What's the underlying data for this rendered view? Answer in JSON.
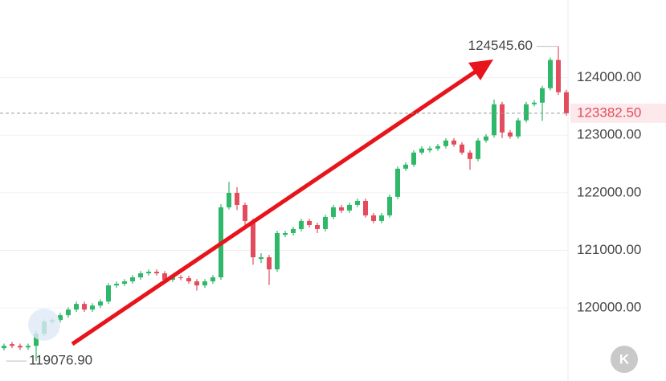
{
  "chart_data": {
    "type": "candlestick",
    "open": [
      119300,
      119371,
      119341,
      119313,
      119341,
      119551,
      119761,
      119789,
      119873,
      119971,
      120069,
      119971,
      120041,
      120111,
      120391,
      120419,
      120461,
      120531,
      120601,
      120629,
      120601,
      120489,
      120531,
      120517,
      120461,
      120391,
      120461,
      120531,
      121748,
      121999,
      121789,
      121510,
      120850,
      120880,
      120670,
      121270,
      121300,
      121370,
      121510,
      121440,
      121370,
      121580,
      121748,
      121692,
      121789,
      121859,
      121608,
      121510,
      121608,
      121930,
      122419,
      122489,
      122699,
      122739,
      122769,
      122811,
      122909,
      122839,
      122699,
      122587,
      122909,
      123000,
      123538,
      123049,
      122979,
      123259,
      123538,
      123566,
      123818,
      124308,
      123748
    ],
    "high": [
      119380,
      119410,
      119380,
      119380,
      119600,
      119800,
      119830,
      119910,
      120010,
      120110,
      120110,
      120080,
      120150,
      120430,
      120460,
      120500,
      120570,
      120640,
      120670,
      120670,
      120640,
      120570,
      120570,
      120560,
      120500,
      120500,
      120570,
      121800,
      122190,
      122100,
      121830,
      121550,
      120950,
      120920,
      121340,
      121340,
      121410,
      121550,
      121550,
      121480,
      121620,
      121790,
      121790,
      121830,
      121900,
      121900,
      121650,
      121650,
      121970,
      122460,
      122530,
      122740,
      122810,
      122810,
      122850,
      122950,
      122950,
      122880,
      122740,
      122950,
      123020,
      123620,
      123580,
      123090,
      123300,
      123580,
      123610,
      123860,
      124350,
      124545.6,
      123790
    ],
    "low": [
      119260,
      119300,
      119270,
      119270,
      119076.9,
      119510,
      119720,
      119750,
      119830,
      119930,
      119930,
      119930,
      120000,
      120070,
      120350,
      120380,
      120420,
      120490,
      120560,
      120560,
      120450,
      120450,
      120480,
      120420,
      120300,
      120350,
      120420,
      120490,
      121710,
      121700,
      121400,
      120750,
      120780,
      120400,
      120630,
      121230,
      121260,
      121330,
      121400,
      121300,
      121330,
      121540,
      121650,
      121650,
      121750,
      121570,
      121470,
      121470,
      121570,
      121890,
      122380,
      122450,
      122660,
      122700,
      122730,
      122770,
      122800,
      122660,
      122400,
      122550,
      122870,
      122960,
      122950,
      122940,
      122940,
      123220,
      123500,
      123250,
      123780,
      123700,
      123340
    ],
    "close": [
      119341,
      119341,
      119313,
      119341,
      119551,
      119761,
      119789,
      119873,
      119971,
      120069,
      119971,
      120041,
      120111,
      120391,
      120419,
      120461,
      120531,
      120601,
      120629,
      120601,
      120489,
      120531,
      120517,
      120461,
      120391,
      120461,
      120531,
      121748,
      121999,
      121789,
      121510,
      120880,
      120880,
      120670,
      121300,
      121300,
      121370,
      121510,
      121440,
      121370,
      121580,
      121748,
      121692,
      121789,
      121859,
      121608,
      121510,
      121608,
      121930,
      122419,
      122489,
      122699,
      122769,
      122769,
      122811,
      122909,
      122839,
      122699,
      122587,
      122909,
      122979,
      123538,
      123049,
      122979,
      123259,
      123538,
      123566,
      123818,
      124308,
      123748,
      123382.5
    ],
    "up_color": "#2fb869",
    "down_color": "#e24c5c",
    "ylim": [
      118730,
      125350
    ],
    "yticks": [
      {
        "value": 120000,
        "label": "120000.00"
      },
      {
        "value": 121000,
        "label": "121000.00"
      },
      {
        "value": 122000,
        "label": "122000.00"
      },
      {
        "value": 123000,
        "label": "123000.00"
      },
      {
        "value": 124000,
        "label": "124000.00"
      }
    ],
    "grid": true,
    "last_price": {
      "value": 123382.5,
      "label": "123382.50"
    },
    "max_label": {
      "value": 124545.6,
      "label": "124545.60"
    },
    "min_label": {
      "value": 119076.9,
      "label": "119076.90"
    }
  },
  "ui": {
    "button": "K"
  }
}
